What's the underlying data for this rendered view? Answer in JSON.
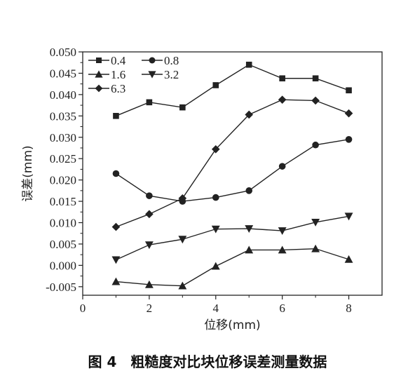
{
  "caption": "图 4　粗糙度对比块位移误差测量数据",
  "chart_data": {
    "type": "line",
    "xlabel": "位移(mm)",
    "ylabel": "误差(mm)",
    "xlim": [
      0,
      9
    ],
    "ylim": [
      -0.007,
      0.05
    ],
    "xticks": [
      0,
      2,
      4,
      6,
      8
    ],
    "yticks": [
      -0.005,
      0.0,
      0.005,
      0.01,
      0.015,
      0.02,
      0.025,
      0.03,
      0.035,
      0.04,
      0.045,
      0.05
    ],
    "ytick_labels": [
      "-0.005",
      "0.000",
      "0.005",
      "0.010",
      "0.015",
      "0.020",
      "0.025",
      "0.030",
      "0.035",
      "0.040",
      "0.045",
      "0.050"
    ],
    "xtick_labels": [
      "0",
      "2",
      "4",
      "6",
      "8"
    ],
    "grid": false,
    "legend_position": "top-left",
    "x": [
      1,
      2,
      3,
      4,
      5,
      6,
      7,
      8
    ],
    "series": [
      {
        "name": "0.4",
        "marker": "square",
        "values": [
          0.035,
          0.0382,
          0.037,
          0.0422,
          0.047,
          0.0438,
          0.0438,
          0.041
        ]
      },
      {
        "name": "0.8",
        "marker": "circle",
        "values": [
          0.0215,
          0.0163,
          0.015,
          0.0159,
          0.0175,
          0.0232,
          0.0282,
          0.0295
        ]
      },
      {
        "name": "1.6",
        "marker": "triangle-up",
        "values": [
          -0.0038,
          -0.0045,
          -0.0048,
          -0.0002,
          0.0036,
          0.0036,
          0.0039,
          0.0014
        ]
      },
      {
        "name": "3.2",
        "marker": "triangle-down",
        "values": [
          0.0013,
          0.0048,
          0.0061,
          0.0085,
          0.0086,
          0.0081,
          0.0101,
          0.0115
        ]
      },
      {
        "name": "6.3",
        "marker": "diamond",
        "values": [
          0.009,
          0.012,
          0.0157,
          0.0272,
          0.0353,
          0.0388,
          0.0386,
          0.0356
        ]
      }
    ],
    "color": "#222222"
  }
}
